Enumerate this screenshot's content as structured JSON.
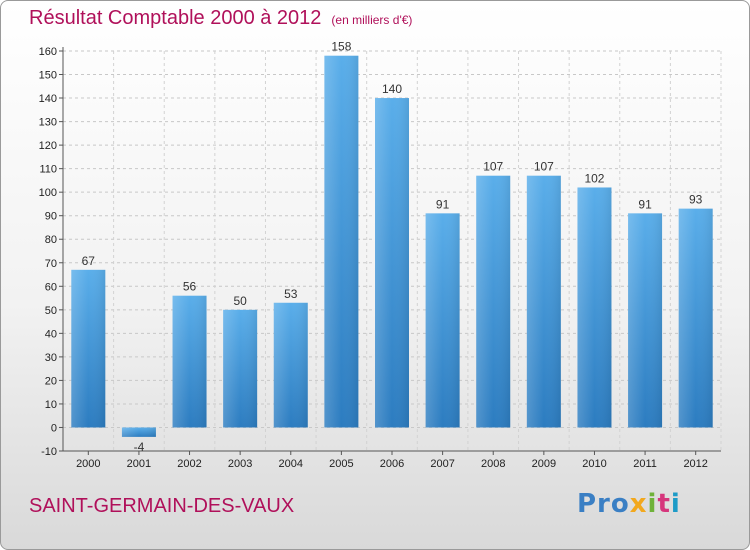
{
  "title": "Résultat Comptable 2000 à 2012",
  "subtitle": "(en milliers d'€)",
  "town": "SAINT-GERMAIN-DES-VAUX",
  "logo": {
    "p1": "Pro",
    "p2": "x",
    "p3": "i",
    "p4": "t",
    "p5": "i"
  },
  "chart_data": {
    "type": "bar",
    "categories": [
      "2000",
      "2001",
      "2002",
      "2003",
      "2004",
      "2005",
      "2006",
      "2007",
      "2008",
      "2009",
      "2010",
      "2011",
      "2012"
    ],
    "values": [
      67,
      -4,
      56,
      50,
      53,
      158,
      140,
      91,
      107,
      107,
      102,
      91,
      93
    ],
    "title": "Résultat Comptable 2000 à 2012",
    "ylim": [
      -10,
      160
    ],
    "yticks": [
      -10,
      0,
      10,
      20,
      30,
      40,
      50,
      60,
      70,
      80,
      90,
      100,
      110,
      120,
      130,
      140,
      150,
      160
    ],
    "grid": true,
    "bar_color": "#4a9ce0"
  }
}
